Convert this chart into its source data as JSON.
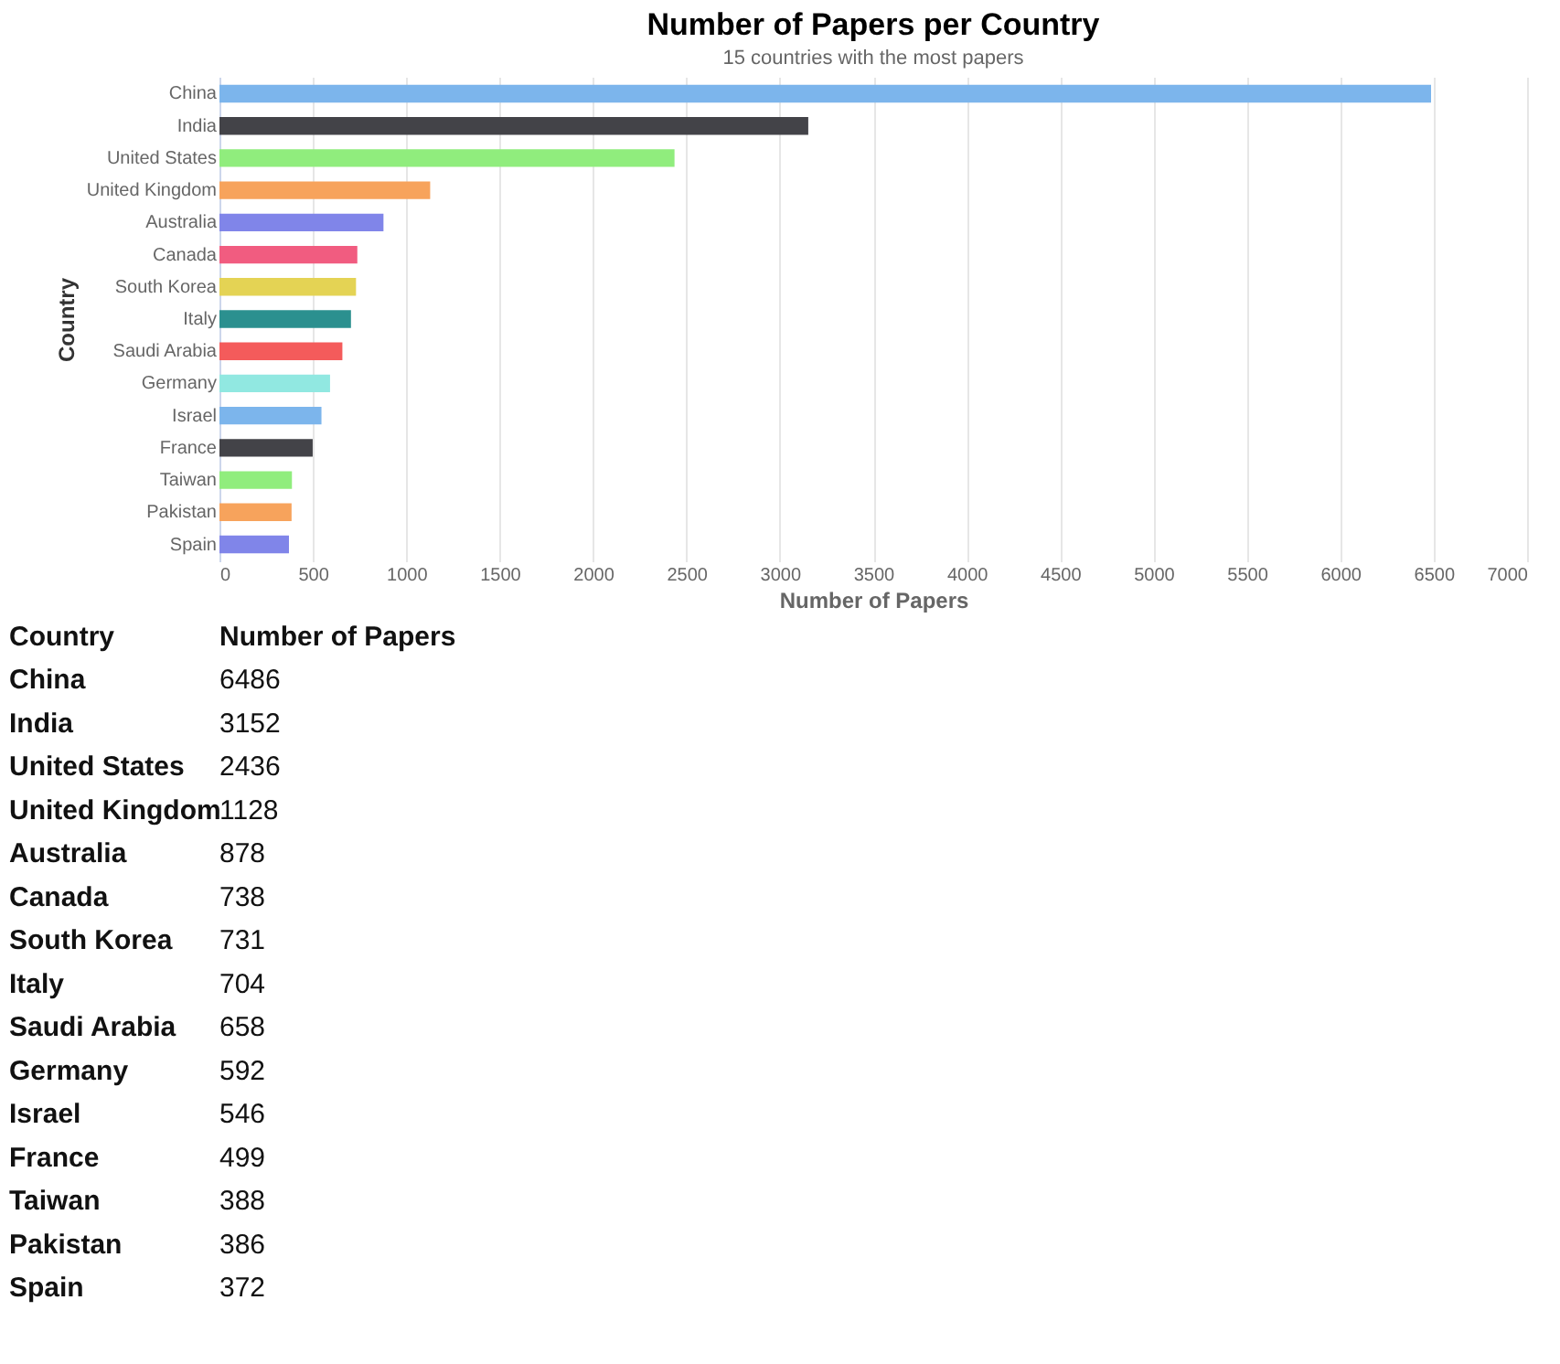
{
  "chart_data": [
    {
      "type": "bar",
      "orientation": "horizontal",
      "title": "Number of Papers per Country",
      "subtitle": "15 countries with the most papers",
      "xlabel": "Number of Papers",
      "ylabel": "Country",
      "categories": [
        "China",
        "India",
        "United States",
        "United Kingdom",
        "Australia",
        "Canada",
        "South Korea",
        "Italy",
        "Saudi Arabia",
        "Germany",
        "Israel",
        "France",
        "Taiwan",
        "Pakistan",
        "Spain"
      ],
      "values": [
        6486,
        3152,
        2436,
        1128,
        878,
        738,
        731,
        704,
        658,
        592,
        546,
        499,
        388,
        386,
        372
      ],
      "colors": [
        "#7cb5ec",
        "#434348",
        "#90ed7d",
        "#f7a35c",
        "#8085e9",
        "#f15c80",
        "#e4d354",
        "#2b908f",
        "#f45b5b",
        "#91e8e1",
        "#7cb5ec",
        "#434348",
        "#90ed7d",
        "#f7a35c",
        "#8085e9"
      ],
      "xlim": [
        0,
        7000
      ],
      "xticks": [
        0,
        500,
        1000,
        1500,
        2000,
        2500,
        3000,
        3500,
        4000,
        4500,
        5000,
        5500,
        6000,
        6500,
        7000
      ],
      "grid": "x",
      "legend": false
    },
    {
      "type": "other",
      "ylabel": "Country",
      "xlabel": "Number of Papers",
      "categories": [
        "China",
        "India",
        "United States",
        "United Kingdom",
        "Australia",
        "Canada",
        "South Korea",
        "Italy",
        "Saudi Arabia",
        "Germany",
        "Israel",
        "France",
        "Taiwan",
        "Pakistan",
        "Spain"
      ],
      "values": [
        6486,
        3152,
        2436,
        1128,
        878,
        738,
        731,
        704,
        658,
        592,
        546,
        499,
        388,
        386,
        372
      ],
      "data_labels": true
    }
  ]
}
